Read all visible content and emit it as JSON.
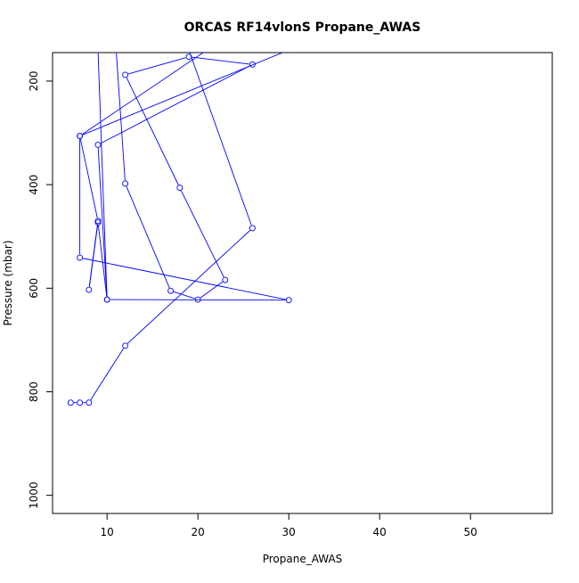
{
  "chart_data": {
    "type": "line",
    "title": "ORCAS RF14vlonS Propane_AWAS",
    "xlabel": "Propane_AWAS",
    "ylabel": "Pressure (mbar)",
    "xlim": [
      4,
      59
    ],
    "ylim": [
      1035,
      145
    ],
    "y_reversed": true,
    "x_ticks": [
      "10",
      "20",
      "30",
      "40",
      "50"
    ],
    "y_ticks": [
      "200",
      "400",
      "600",
      "800",
      "1000"
    ],
    "series": [
      {
        "color": "#0000ff",
        "marker": "open-circle",
        "points": [
          [
            6,
            821
          ],
          [
            7,
            821
          ],
          [
            8,
            821
          ],
          [
            12,
            711
          ],
          [
            26,
            484
          ],
          [
            19,
            140
          ],
          [
            11,
            140
          ],
          [
            12,
            398
          ],
          [
            17,
            605
          ],
          [
            20,
            622
          ],
          [
            23,
            584
          ],
          [
            18,
            406
          ],
          [
            12,
            188
          ],
          [
            19,
            153
          ],
          [
            26,
            168
          ],
          [
            9,
            323
          ],
          [
            10,
            622
          ],
          [
            9,
            473
          ],
          [
            8,
            603
          ],
          [
            9,
            470
          ],
          [
            7,
            306
          ],
          [
            21,
            140
          ],
          [
            30,
            140
          ],
          [
            7,
            306
          ],
          [
            7,
            541
          ],
          [
            30,
            623
          ],
          [
            10,
            622
          ],
          [
            9,
            140
          ]
        ]
      }
    ]
  }
}
